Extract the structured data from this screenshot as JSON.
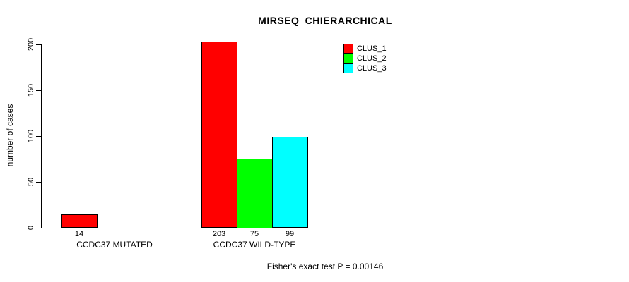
{
  "chart_data": {
    "type": "bar",
    "title": "MIRSEQ_CHIERARCHICAL",
    "ylabel": "number of cases",
    "xlabel": "",
    "ylim": [
      0,
      200
    ],
    "yticks": [
      0,
      50,
      100,
      150,
      200
    ],
    "grid": false,
    "legend_position": "top-right",
    "series": [
      {
        "name": "CLUS_1",
        "color": "#ff0000"
      },
      {
        "name": "CLUS_2",
        "color": "#00ff00"
      },
      {
        "name": "CLUS_3",
        "color": "#00ffff"
      }
    ],
    "groups": [
      {
        "label": "CCDC37 MUTATED",
        "values": [
          14,
          0,
          0
        ],
        "bar_labels": [
          "14",
          null,
          null
        ]
      },
      {
        "label": "CCDC37 WILD-TYPE",
        "values": [
          203,
          75,
          99
        ],
        "bar_labels": [
          "203",
          "75",
          "99"
        ]
      }
    ],
    "annotation": "Fisher's exact test P = 0.00146"
  }
}
